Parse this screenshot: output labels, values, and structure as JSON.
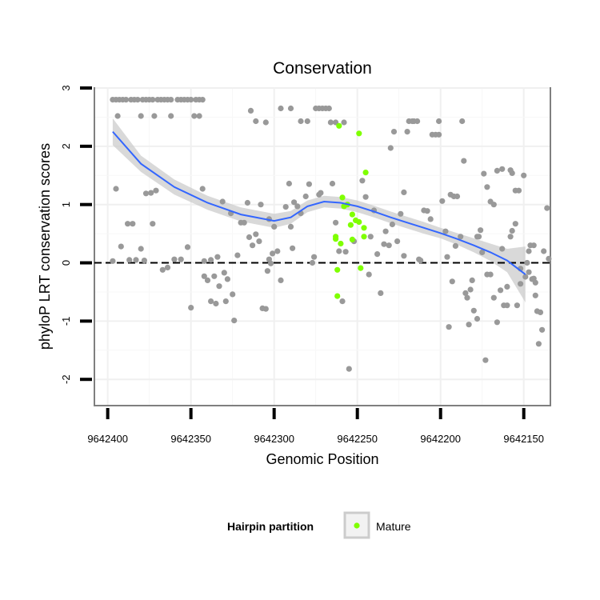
{
  "chart_data": {
    "type": "scatter",
    "title": "Conservation",
    "xlabel": "Genomic Position",
    "ylabel": "phyloP LRT conservation scores",
    "xlim": [
      9642408,
      9642134
    ],
    "ylim": [
      -2.45,
      3.0
    ],
    "x_ticks": [
      9642400,
      9642350,
      9642300,
      9642250,
      9642200,
      9642150
    ],
    "x_tick_labels": [
      "9642400",
      "9642350",
      "9642300",
      "9642250",
      "9642200",
      "9642150"
    ],
    "y_ticks": [
      -2,
      -1,
      0,
      1,
      2,
      3
    ],
    "y_tick_labels": [
      "-2",
      "-1",
      "0",
      "1",
      "2",
      "3"
    ],
    "reference_line": {
      "y": 0,
      "style": "dashed"
    },
    "grid": true,
    "legend": {
      "title": "Hairpin partition",
      "entries": [
        {
          "label": "Mature",
          "color": "#7FFF00"
        }
      ],
      "placement": "bottom"
    },
    "colors": {
      "hairpin": "#999999",
      "mature": "#7FFF00",
      "smooth": "#3366FF",
      "band": "#CCCCCC"
    },
    "smooth": {
      "x": [
        9642397,
        9642380,
        9642360,
        9642340,
        9642320,
        9642300,
        9642290,
        9642280,
        9642270,
        9642260,
        9642250,
        9642240,
        9642230,
        9642220,
        9642210,
        9642200,
        9642190,
        9642180,
        9642170,
        9642160,
        9642149
      ],
      "y": [
        2.25,
        1.7,
        1.3,
        1.03,
        0.83,
        0.72,
        0.78,
        0.97,
        1.05,
        1.03,
        0.97,
        0.88,
        0.78,
        0.69,
        0.6,
        0.51,
        0.41,
        0.3,
        0.18,
        0.04,
        -0.2
      ],
      "lower": [
        2.02,
        1.56,
        1.17,
        0.91,
        0.71,
        0.6,
        0.67,
        0.87,
        0.95,
        0.93,
        0.87,
        0.78,
        0.68,
        0.59,
        0.5,
        0.42,
        0.31,
        0.18,
        0.03,
        -0.16,
        -0.68
      ],
      "upper": [
        2.48,
        1.84,
        1.43,
        1.15,
        0.95,
        0.84,
        0.89,
        1.07,
        1.15,
        1.13,
        1.07,
        0.98,
        0.88,
        0.79,
        0.7,
        0.6,
        0.51,
        0.42,
        0.33,
        0.24,
        0.28
      ]
    },
    "series": [
      {
        "name": "Hairpin",
        "points": [
          [
            9642397,
            2.8
          ],
          [
            9642395,
            2.8
          ],
          [
            9642393,
            2.8
          ],
          [
            9642391,
            2.8
          ],
          [
            9642389,
            2.8
          ],
          [
            9642386,
            2.8
          ],
          [
            9642384,
            2.8
          ],
          [
            9642382,
            2.8
          ],
          [
            9642379,
            2.8
          ],
          [
            9642377,
            2.8
          ],
          [
            9642375,
            2.8
          ],
          [
            9642373,
            2.8
          ],
          [
            9642370,
            2.8
          ],
          [
            9642368,
            2.8
          ],
          [
            9642366,
            2.8
          ],
          [
            9642364,
            2.8
          ],
          [
            9642362,
            2.8
          ],
          [
            9642358,
            2.8
          ],
          [
            9642356,
            2.8
          ],
          [
            9642354,
            2.8
          ],
          [
            9642352,
            2.8
          ],
          [
            9642350,
            2.8
          ],
          [
            9642347,
            2.8
          ],
          [
            9642345,
            2.8
          ],
          [
            9642343,
            2.8
          ],
          [
            9642394,
            2.52
          ],
          [
            9642380,
            2.52
          ],
          [
            9642372,
            2.52
          ],
          [
            9642362,
            2.52
          ],
          [
            9642348,
            2.52
          ],
          [
            9642345,
            2.52
          ],
          [
            9642397,
            0.03
          ],
          [
            9642395,
            1.27
          ],
          [
            9642392,
            0.28
          ],
          [
            9642388,
            0.67
          ],
          [
            9642385,
            0.67
          ],
          [
            9642387,
            0.05
          ],
          [
            9642383,
            0.05
          ],
          [
            9642380,
            0.24
          ],
          [
            9642378,
            0.04
          ],
          [
            9642377,
            1.19
          ],
          [
            9642374,
            1.2
          ],
          [
            9642373,
            0.67
          ],
          [
            9642371,
            1.24
          ],
          [
            9642367,
            -0.12
          ],
          [
            9642364,
            -0.08
          ],
          [
            9642360,
            0.06
          ],
          [
            9642356,
            0.06
          ],
          [
            9642352,
            0.27
          ],
          [
            9642350,
            -0.77
          ],
          [
            9642343,
            1.27
          ],
          [
            9642342,
            -0.23
          ],
          [
            9642342,
            0.03
          ],
          [
            9642340,
            -0.3
          ],
          [
            9642338,
            -0.66
          ],
          [
            9642338,
            0.05
          ],
          [
            9642336,
            -0.23
          ],
          [
            9642335,
            -0.7
          ],
          [
            9642334,
            0.1
          ],
          [
            9642333,
            -0.4
          ],
          [
            9642331,
            1.05
          ],
          [
            9642330,
            -0.17
          ],
          [
            9642329,
            -0.66
          ],
          [
            9642328,
            -0.28
          ],
          [
            9642325,
            -0.54
          ],
          [
            9642324,
            -0.99
          ],
          [
            9642326,
            0.85
          ],
          [
            9642322,
            0.13
          ],
          [
            9642320,
            0.69
          ],
          [
            9642318,
            0.69
          ],
          [
            9642316,
            1.03
          ],
          [
            9642315,
            0.44
          ],
          [
            9642313,
            0.3
          ],
          [
            9642311,
            0.49
          ],
          [
            9642309,
            0.37
          ],
          [
            9642308,
            1.0
          ],
          [
            9642307,
            -0.78
          ],
          [
            9642305,
            -0.79
          ],
          [
            9642303,
            0.75
          ],
          [
            9642302,
            -0.01
          ],
          [
            9642300,
            0.62
          ],
          [
            9642298,
            0.2
          ],
          [
            9642296,
            -0.3
          ],
          [
            9642293,
            0.96
          ],
          [
            9642291,
            1.36
          ],
          [
            9642289,
            0.25
          ],
          [
            9642288,
            1.04
          ],
          [
            9642286,
            0.97
          ],
          [
            9642284,
            0.85
          ],
          [
            9642281,
            1.14
          ],
          [
            9642279,
            1.35
          ],
          [
            9642277,
            0.0
          ],
          [
            9642276,
            0.1
          ],
          [
            9642273,
            1.17
          ],
          [
            9642290,
            0.62
          ],
          [
            9642265,
            1.36
          ],
          [
            9642263,
            0.69
          ],
          [
            9642261,
            0.2
          ],
          [
            9642259,
            -0.66
          ],
          [
            9642257,
            0.19
          ],
          [
            9642255,
            -1.82
          ],
          [
            9642252,
            0.37
          ],
          [
            9642301,
            0.16
          ],
          [
            9642303,
            0.06
          ],
          [
            9642304,
            -0.14
          ],
          [
            9642272,
            1.2
          ],
          [
            9642314,
            2.61
          ],
          [
            9642311,
            2.43
          ],
          [
            9642305,
            2.41
          ],
          [
            9642296,
            2.65
          ],
          [
            9642290,
            2.65
          ],
          [
            9642284,
            2.43
          ],
          [
            9642280,
            2.43
          ],
          [
            9642275,
            2.65
          ],
          [
            9642273,
            2.65
          ],
          [
            9642271,
            2.65
          ],
          [
            9642269,
            2.65
          ],
          [
            9642267,
            2.65
          ],
          [
            9642266,
            2.41
          ],
          [
            9642263,
            2.41
          ],
          [
            9642258,
            2.41
          ],
          [
            9642240,
            0.9
          ],
          [
            9642238,
            0.15
          ],
          [
            9642236,
            -0.52
          ],
          [
            9642233,
            0.54
          ],
          [
            9642231,
            0.3
          ],
          [
            9642230,
            1.97
          ],
          [
            9642228,
            2.25
          ],
          [
            9642226,
            0.37
          ],
          [
            9642224,
            0.84
          ],
          [
            9642222,
            1.21
          ],
          [
            9642220,
            2.25
          ],
          [
            9642219,
            2.43
          ],
          [
            9642217,
            2.43
          ],
          [
            9642216,
            2.43
          ],
          [
            9642214,
            2.43
          ],
          [
            9642213,
            0.06
          ],
          [
            9642212,
            0.04
          ],
          [
            9642210,
            0.9
          ],
          [
            9642208,
            0.89
          ],
          [
            9642206,
            0.75
          ],
          [
            9642205,
            2.2
          ],
          [
            9642203,
            2.2
          ],
          [
            9642201,
            2.2
          ],
          [
            9642201,
            2.43
          ],
          [
            9642197,
            0.54
          ],
          [
            9642196,
            0.1
          ],
          [
            9642194,
            1.17
          ],
          [
            9642192,
            1.14
          ],
          [
            9642190,
            1.14
          ],
          [
            9642188,
            0.45
          ],
          [
            9642187,
            2.43
          ],
          [
            9642185,
            -0.52
          ],
          [
            9642184,
            -0.6
          ],
          [
            9642183,
            -1.06
          ],
          [
            9642181,
            -0.3
          ],
          [
            9642180,
            -0.82
          ],
          [
            9642178,
            -0.96
          ],
          [
            9642177,
            0.45
          ],
          [
            9642175,
            0.18
          ],
          [
            9642173,
            -1.67
          ],
          [
            9642172,
            -0.2
          ],
          [
            9642170,
            -0.2
          ],
          [
            9642168,
            -0.6
          ],
          [
            9642166,
            -1.02
          ],
          [
            9642164,
            -0.47
          ],
          [
            9642163,
            0.24
          ],
          [
            9642160,
            -0.41
          ],
          [
            9642158,
            0.45
          ],
          [
            9642157,
            0.55
          ],
          [
            9642155,
            0.67
          ],
          [
            9642154,
            -0.73
          ],
          [
            9642152,
            -0.36
          ],
          [
            9642149,
            -0.24
          ],
          [
            9642147,
            -0.16
          ],
          [
            9642145,
            -0.28
          ],
          [
            9642143,
            -0.34
          ],
          [
            9642142,
            -0.83
          ],
          [
            9642141,
            -1.39
          ],
          [
            9642140,
            -0.85
          ],
          [
            9642138,
            0.2
          ],
          [
            9642136,
            0.94
          ],
          [
            9642135,
            0.07
          ],
          [
            9642174,
            1.53
          ],
          [
            9642172,
            1.3
          ],
          [
            9642170,
            1.05
          ],
          [
            9642168,
            1.0
          ],
          [
            9642166,
            1.58
          ],
          [
            9642163,
            1.61
          ],
          [
            9642158,
            1.59
          ],
          [
            9642157,
            1.54
          ],
          [
            9642155,
            1.24
          ],
          [
            9642153,
            1.24
          ],
          [
            9642150,
            1.5
          ],
          [
            9642146,
            0.3
          ],
          [
            9642147,
            0.2
          ],
          [
            9642144,
            -0.27
          ],
          [
            9642139,
            -1.15
          ],
          [
            9642143,
            -0.56
          ],
          [
            9642152,
            -0.1
          ],
          [
            9642160,
            -0.73
          ],
          [
            9642162,
            -0.73
          ],
          [
            9642176,
            0.56
          ],
          [
            9642178,
            0.45
          ],
          [
            9642182,
            -0.46
          ],
          [
            9642193,
            -0.32
          ],
          [
            9642195,
            -1.1
          ],
          [
            9642199,
            1.06
          ],
          [
            9642186,
            1.75
          ],
          [
            9642191,
            0.29
          ],
          [
            9642148,
            0.0
          ],
          [
            9642144,
            0.3
          ],
          [
            9642245,
            1.13
          ],
          [
            9642242,
            0.45
          ],
          [
            9642247,
            1.41
          ],
          [
            9642243,
            -0.2
          ],
          [
            9642234,
            0.32
          ],
          [
            9642229,
            0.66
          ],
          [
            9642222,
            0.12
          ]
        ]
      },
      {
        "name": "Mature",
        "points": [
          [
            9642261,
            2.35
          ],
          [
            9642249,
            2.22
          ],
          [
            9642245,
            1.55
          ],
          [
            9642259,
            1.12
          ],
          [
            9642258,
            0.97
          ],
          [
            9642256,
            1.0
          ],
          [
            9642253,
            0.83
          ],
          [
            9642251,
            0.73
          ],
          [
            9642249,
            0.7
          ],
          [
            9642246,
            0.6
          ],
          [
            9642254,
            0.65
          ],
          [
            9642263,
            0.45
          ],
          [
            9642263,
            0.41
          ],
          [
            9642262,
            -0.12
          ],
          [
            9642260,
            0.33
          ],
          [
            9642253,
            0.4
          ],
          [
            9642246,
            0.45
          ],
          [
            9642248,
            -0.09
          ],
          [
            9642262,
            -0.57
          ]
        ]
      }
    ]
  }
}
